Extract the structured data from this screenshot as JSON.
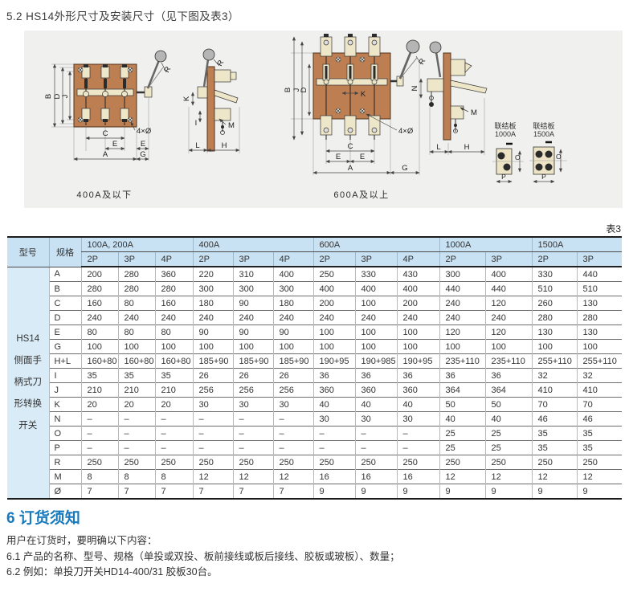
{
  "page": {
    "section_title": "5.2 HS14外形尺寸及安装尺寸（见下图及表3）",
    "table_caption": "表3"
  },
  "drawings": {
    "left_caption": "400A及以下",
    "right_caption": "600A及以上",
    "callout": "4×Ø",
    "plates": [
      {
        "line1": "联结板",
        "line2": "1000A"
      },
      {
        "line1": "联结板",
        "line2": "1500A"
      }
    ],
    "dims": {
      "A": "A",
      "B": "B",
      "C": "C",
      "D": "D",
      "E": "E",
      "G": "G",
      "H": "H",
      "I": "I",
      "J": "J",
      "K": "K",
      "L": "L",
      "M": "M",
      "N": "N",
      "O": "O",
      "P": "P",
      "R": "R"
    }
  },
  "table": {
    "model_header": "型号",
    "spec_header": "规格",
    "model_label_lines": [
      "HS14",
      "侧面手",
      "柄式刀",
      "形转换",
      "开关"
    ],
    "groups": [
      {
        "label": "100A, 200A",
        "cols": [
          "2P",
          "3P",
          "4P"
        ]
      },
      {
        "label": "400A",
        "cols": [
          "2P",
          "3P",
          "4P"
        ]
      },
      {
        "label": "600A",
        "cols": [
          "2P",
          "3P",
          "4P"
        ]
      },
      {
        "label": "1000A",
        "cols": [
          "2P",
          "3P"
        ]
      },
      {
        "label": "1500A",
        "cols": [
          "2P",
          "3P"
        ]
      }
    ],
    "rows": [
      {
        "label": "A",
        "values": [
          "200",
          "280",
          "360",
          "220",
          "310",
          "400",
          "250",
          "330",
          "430",
          "300",
          "400",
          "330",
          "440"
        ]
      },
      {
        "label": "B",
        "values": [
          "280",
          "280",
          "280",
          "300",
          "300",
          "300",
          "400",
          "400",
          "400",
          "440",
          "440",
          "510",
          "510"
        ]
      },
      {
        "label": "C",
        "values": [
          "160",
          "80",
          "160",
          "180",
          "90",
          "180",
          "200",
          "100",
          "200",
          "240",
          "120",
          "260",
          "130"
        ]
      },
      {
        "label": "D",
        "values": [
          "240",
          "240",
          "240",
          "240",
          "240",
          "240",
          "240",
          "240",
          "240",
          "240",
          "240",
          "280",
          "280"
        ]
      },
      {
        "label": "E",
        "values": [
          "80",
          "80",
          "80",
          "90",
          "90",
          "90",
          "100",
          "100",
          "100",
          "120",
          "120",
          "130",
          "130"
        ]
      },
      {
        "label": "G",
        "values": [
          "100",
          "100",
          "100",
          "100",
          "100",
          "100",
          "100",
          "100",
          "100",
          "100",
          "100",
          "100",
          "100"
        ]
      },
      {
        "label": "H+L",
        "values": [
          "160+80",
          "160+80",
          "160+80",
          "185+90",
          "185+90",
          "185+90",
          "190+95",
          "190+985",
          "190+95",
          "235+110",
          "235+110",
          "255+110",
          "255+110"
        ]
      },
      {
        "label": "I",
        "values": [
          "35",
          "35",
          "35",
          "26",
          "26",
          "26",
          "36",
          "36",
          "36",
          "36",
          "36",
          "32",
          "32"
        ]
      },
      {
        "label": "J",
        "values": [
          "210",
          "210",
          "210",
          "256",
          "256",
          "256",
          "360",
          "360",
          "360",
          "364",
          "364",
          "410",
          "410"
        ]
      },
      {
        "label": "K",
        "values": [
          "20",
          "20",
          "20",
          "30",
          "30",
          "30",
          "40",
          "40",
          "40",
          "50",
          "50",
          "70",
          "70"
        ]
      },
      {
        "label": "N",
        "values": [
          "–",
          "–",
          "–",
          "–",
          "–",
          "–",
          "30",
          "30",
          "30",
          "40",
          "40",
          "46",
          "46"
        ]
      },
      {
        "label": "O",
        "values": [
          "–",
          "–",
          "–",
          "–",
          "–",
          "–",
          "–",
          "–",
          "–",
          "25",
          "25",
          "35",
          "35"
        ]
      },
      {
        "label": "P",
        "values": [
          "–",
          "–",
          "–",
          "–",
          "–",
          "–",
          "–",
          "–",
          "–",
          "25",
          "25",
          "35",
          "35"
        ]
      },
      {
        "label": "R",
        "values": [
          "250",
          "250",
          "250",
          "250",
          "250",
          "250",
          "250",
          "250",
          "250",
          "250",
          "250",
          "250",
          "250"
        ]
      },
      {
        "label": "M",
        "values": [
          "8",
          "8",
          "8",
          "12",
          "12",
          "12",
          "16",
          "16",
          "16",
          "12",
          "12",
          "12",
          "12"
        ]
      },
      {
        "label": "Ø",
        "values": [
          "7",
          "7",
          "7",
          "7",
          "7",
          "7",
          "9",
          "9",
          "9",
          "9",
          "9",
          "9",
          "9"
        ]
      }
    ]
  },
  "ordering": {
    "heading": "6 订货须知",
    "lines": [
      "用户在订货时，要明确以下内容：",
      "6.1 产品的名称、型号、规格（单投或双投、板前接线或板后接线、胶板或玻板）、数量；",
      "6.2 例如：单投刀开关HD14-400/31 胶板30台。"
    ]
  }
}
